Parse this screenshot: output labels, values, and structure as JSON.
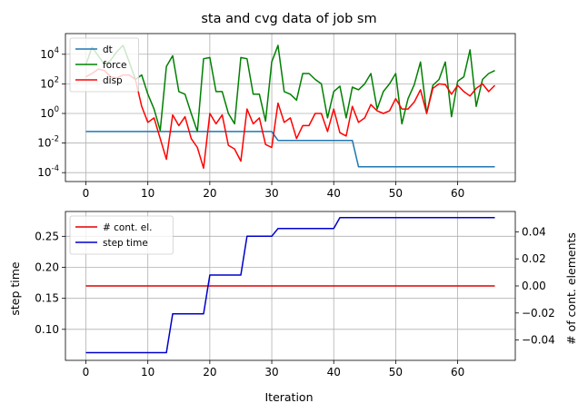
{
  "chart_data": [
    {
      "type": "line",
      "title": "sta and cvg data of job sm",
      "xlabel": "",
      "ylabel": "",
      "yscale": "log",
      "xlim": [
        -3.3,
        69.3
      ],
      "ylim": [
        2.5e-05,
        250000
      ],
      "xticks": [
        0,
        10,
        20,
        30,
        40,
        50,
        60
      ],
      "xtick_labels": [
        "0",
        "10",
        "20",
        "30",
        "40",
        "50",
        "60"
      ],
      "yticks": [
        0.0001,
        0.01,
        1,
        100,
        10000
      ],
      "ytick_labels": [
        "10^-4",
        "10^-2",
        "10^0",
        "10^2",
        "10^4"
      ],
      "grid": true,
      "legend_position": "top-left",
      "series": [
        {
          "name": "dt",
          "color": "#1f77b4",
          "x": [
            0,
            30,
            31,
            43,
            44,
            66
          ],
          "y": [
            0.06,
            0.06,
            0.015,
            0.015,
            0.00025,
            0.00025
          ]
        },
        {
          "name": "force",
          "color": "#008000",
          "x": [
            0,
            1,
            2,
            3,
            4,
            5,
            6,
            7,
            8,
            9,
            10,
            11,
            12,
            13,
            14,
            15,
            16,
            17,
            18,
            19,
            20,
            21,
            22,
            23,
            24,
            25,
            26,
            27,
            28,
            29,
            30,
            31,
            32,
            33,
            34,
            35,
            36,
            37,
            38,
            39,
            40,
            41,
            42,
            43,
            44,
            45,
            46,
            47,
            48,
            49,
            50,
            51,
            52,
            53,
            54,
            55,
            56,
            57,
            58,
            59,
            60,
            61,
            62,
            63,
            64,
            65,
            66
          ],
          "y": [
            2000,
            30000,
            8000,
            2000,
            4000,
            15000,
            40000,
            3000,
            200,
            400,
            20,
            2,
            0.07,
            1500,
            8000,
            30,
            20,
            1,
            0.06,
            5000,
            6000,
            30,
            30,
            1,
            0.2,
            6000,
            5000,
            20,
            20,
            0.3,
            3000,
            40000,
            30,
            20,
            8,
            500,
            500,
            200,
            100,
            0.5,
            30,
            70,
            0.5,
            60,
            40,
            100,
            500,
            2,
            30,
            100,
            500,
            0.2,
            10,
            90,
            3000,
            1,
            80,
            200,
            3000,
            0.6,
            150,
            300,
            20000,
            3,
            200,
            500,
            800
          ]
        },
        {
          "name": "disp",
          "color": "#ff0000",
          "x": [
            0,
            1,
            2,
            3,
            4,
            5,
            6,
            7,
            8,
            9,
            10,
            11,
            12,
            13,
            14,
            15,
            16,
            17,
            18,
            19,
            20,
            21,
            22,
            23,
            24,
            25,
            26,
            27,
            28,
            29,
            30,
            31,
            32,
            33,
            34,
            35,
            36,
            37,
            38,
            39,
            40,
            41,
            42,
            43,
            44,
            45,
            46,
            47,
            48,
            49,
            50,
            51,
            52,
            53,
            54,
            55,
            56,
            57,
            58,
            59,
            60,
            61,
            62,
            63,
            64,
            65,
            66
          ],
          "y": [
            300,
            500,
            1000,
            800,
            300,
            250,
            400,
            400,
            200,
            3,
            0.25,
            0.5,
            0.02,
            0.0008,
            0.8,
            0.15,
            0.6,
            0.02,
            0.005,
            0.0002,
            1,
            0.2,
            0.8,
            0.007,
            0.004,
            0.0006,
            2,
            0.2,
            0.5,
            0.008,
            0.005,
            5,
            0.25,
            0.5,
            0.02,
            0.15,
            0.15,
            1,
            1,
            0.06,
            2,
            0.05,
            0.03,
            3,
            0.25,
            0.5,
            4,
            1.5,
            1,
            1.5,
            10,
            2,
            2,
            6,
            40,
            1,
            50,
            100,
            90,
            20,
            80,
            30,
            15,
            50,
            100,
            30,
            80
          ]
        }
      ]
    },
    {
      "type": "line",
      "title": "",
      "xlabel": "Iteration",
      "ylabel": "step time",
      "ylabel_right": "# of cont. elements",
      "xlim": [
        -3.3,
        69.3
      ],
      "ylim": [
        0.05,
        0.29
      ],
      "ylim_right": [
        -0.055,
        0.055
      ],
      "xticks": [
        0,
        10,
        20,
        30,
        40,
        50,
        60
      ],
      "xtick_labels": [
        "0",
        "10",
        "20",
        "30",
        "40",
        "50",
        "60"
      ],
      "yticks": [
        0.1,
        0.15,
        0.2,
        0.25
      ],
      "ytick_labels": [
        "0.10",
        "0.15",
        "0.20",
        "0.25"
      ],
      "yticks_right": [
        -0.04,
        -0.02,
        0.0,
        0.02,
        0.04
      ],
      "ytick_labels_right": [
        "−0.04",
        "−0.02",
        "0.00",
        "0.02",
        "0.04"
      ],
      "grid": true,
      "legend_position": "top-left",
      "series": [
        {
          "name": "# cont. el.",
          "color": "#e00000",
          "axis": "right",
          "x": [
            0,
            66
          ],
          "y": [
            0,
            0
          ]
        },
        {
          "name": "step time",
          "color": "#0000cc",
          "axis": "left",
          "x": [
            0,
            13,
            14,
            19,
            20,
            25,
            26,
            30,
            31,
            40,
            41,
            66
          ],
          "y": [
            0.0625,
            0.0625,
            0.125,
            0.125,
            0.1875,
            0.1875,
            0.25,
            0.25,
            0.2625,
            0.2625,
            0.28,
            0.28
          ]
        }
      ]
    }
  ]
}
